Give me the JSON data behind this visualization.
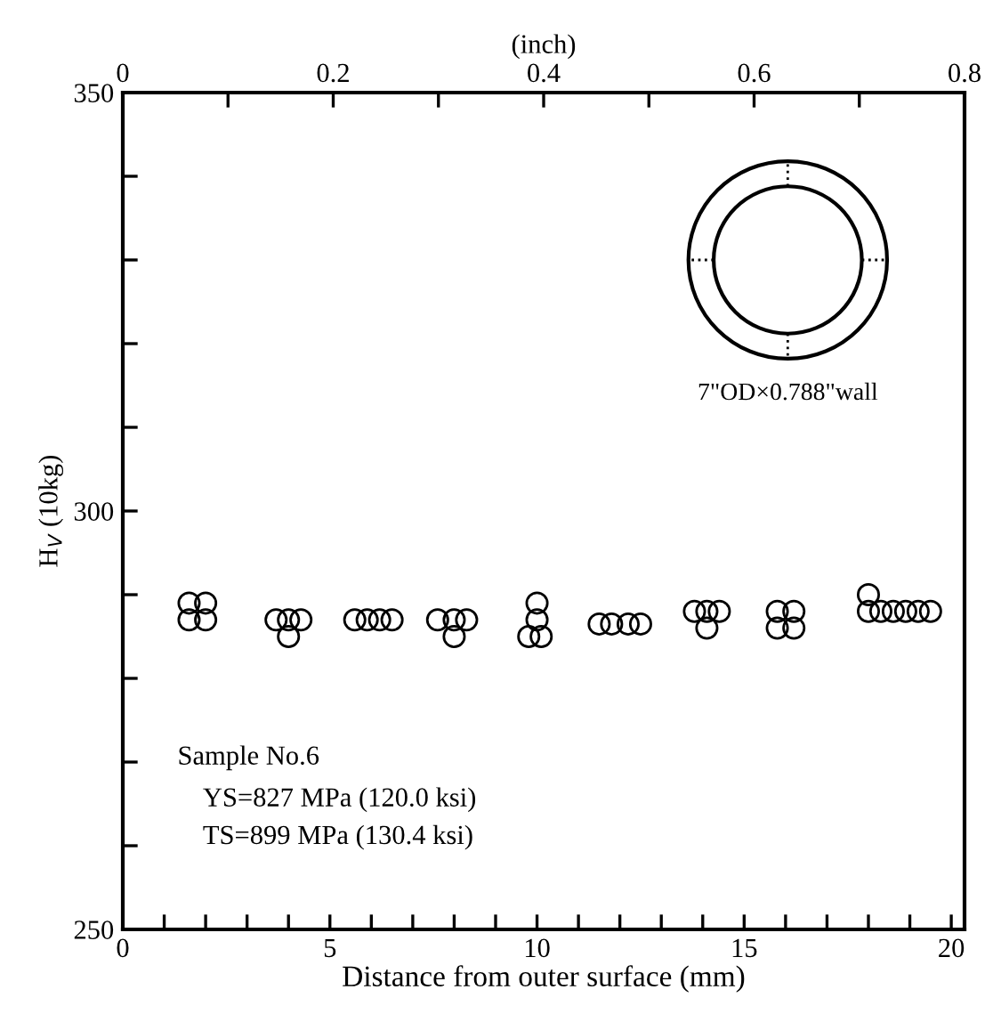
{
  "chart_data": {
    "type": "scatter",
    "xlabel": "Distance from outer surface (mm)",
    "ylabel": "H$_{V}$ (10kg)",
    "x2label": "(inch)",
    "xlim": [
      0,
      20.32
    ],
    "ylim": [
      250,
      350
    ],
    "xticks": [
      0,
      {
        "value": 1,
        "label": null
      },
      {
        "value": 2,
        "label": null
      },
      {
        "value": 3,
        "label": null
      },
      {
        "value": 4,
        "label": null
      },
      5,
      {
        "value": 6,
        "label": null
      },
      {
        "value": 7,
        "label": null
      },
      {
        "value": 8,
        "label": null
      },
      {
        "value": 9,
        "label": null
      },
      10,
      {
        "value": 11,
        "label": null
      },
      {
        "value": 12,
        "label": null
      },
      {
        "value": 13,
        "label": null
      },
      {
        "value": 14,
        "label": null
      },
      15,
      {
        "value": 16,
        "label": null
      },
      {
        "value": 17,
        "label": null
      },
      {
        "value": 18,
        "label": null
      },
      {
        "value": 19,
        "label": null
      },
      20
    ],
    "x2lim": [
      0,
      0.8
    ],
    "x2ticks": [
      0,
      {
        "value": 0.1,
        "label": null
      },
      0.2,
      {
        "value": 0.3,
        "label": null
      },
      0.4,
      {
        "value": 0.5,
        "label": null
      },
      0.6,
      {
        "value": 0.7,
        "label": null
      },
      0.8
    ],
    "yticks": [
      250,
      {
        "value": 260,
        "label": null
      },
      {
        "value": 270,
        "label": null
      },
      {
        "value": 280,
        "label": null
      },
      {
        "value": 290,
        "label": null
      },
      300,
      {
        "value": 310,
        "label": null
      },
      {
        "value": 320,
        "label": null
      },
      {
        "value": 330,
        "label": null
      },
      {
        "value": 340,
        "label": null
      },
      350
    ],
    "series": [
      {
        "color": "#000000",
        "x": [
          1.6,
          2.0,
          1.6,
          2.0,
          3.7,
          4.0,
          4.3,
          4.0,
          5.6,
          5.9,
          6.2,
          6.5,
          7.6,
          8.0,
          8.3,
          8.0,
          10.0,
          10.0,
          9.8,
          10.1,
          11.5,
          11.8,
          12.2,
          12.5,
          13.8,
          14.1,
          14.4,
          14.1,
          15.8,
          16.2,
          15.8,
          16.2,
          18.0,
          18.0,
          18.3,
          18.6,
          18.9,
          19.2,
          19.5
        ],
        "values": [
          289,
          289,
          287,
          287,
          287,
          287,
          287,
          285,
          287,
          287,
          287,
          287,
          287,
          287,
          287,
          285,
          289,
          287,
          285,
          285,
          286.5,
          286.5,
          286.5,
          286.5,
          288,
          288,
          288,
          286,
          288,
          288,
          286,
          286,
          290,
          288,
          288,
          288,
          288,
          288,
          288
        ]
      }
    ],
    "marker": "circle",
    "grid": false,
    "legend": false,
    "annotations": [
      "7\"OD×0.788\"wall",
      "Sample No.6",
      "YS=827 MPa (120.0 ksi)",
      "TS=899 MPa (130.4 ksi)"
    ]
  }
}
